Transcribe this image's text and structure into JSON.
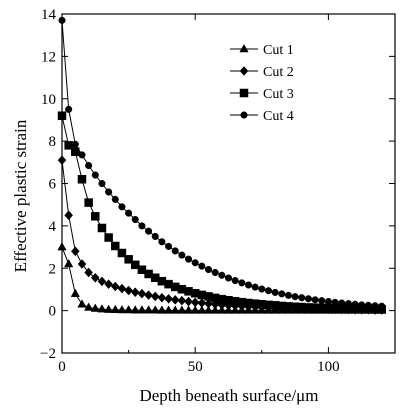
{
  "chart_data": {
    "type": "line",
    "title": "",
    "xlabel": "Depth beneath surface/μm",
    "ylabel": "Effective plastic strain",
    "xlim": [
      0,
      125
    ],
    "ylim": [
      -2,
      14
    ],
    "xticks": [
      0,
      50,
      100
    ],
    "yticks": [
      -2,
      0,
      2,
      4,
      6,
      8,
      10,
      12,
      14
    ],
    "grid": false,
    "legend_position": "top-right",
    "series": [
      {
        "name": "Cut 1",
        "marker": "triangle",
        "x": [
          0,
          2.5,
          5,
          7.5,
          10,
          12.5,
          15,
          17.5,
          20,
          22.5,
          25,
          27.5,
          30,
          32.5,
          35,
          37.5,
          40,
          42.5,
          45,
          47.5,
          50,
          52.5,
          55,
          57.5,
          60,
          62.5,
          65,
          67.5,
          70,
          72.5,
          75,
          77.5,
          80,
          82.5,
          85,
          87.5,
          90,
          92.5,
          95,
          97.5,
          100,
          102.5,
          105,
          107.5,
          110,
          112.5,
          115,
          117.5,
          120
        ],
        "y": [
          3.0,
          2.2,
          0.8,
          0.3,
          0.15,
          0.1,
          0.07,
          0.05,
          0.04,
          0.03,
          0.03,
          0.02,
          0.02,
          0.02,
          0.02,
          0.01,
          0.01,
          0.01,
          0.01,
          0.01,
          0.01,
          0.01,
          0.01,
          0.01,
          0.01,
          0.01,
          0.01,
          0.01,
          0.01,
          0.01,
          0.01,
          0.01,
          0.01,
          0.01,
          0.01,
          0.01,
          0.01,
          0.01,
          0.01,
          0.01,
          0.01,
          0.01,
          0.01,
          0.01,
          0.01,
          0.01,
          0.01,
          0.01,
          0.01
        ]
      },
      {
        "name": "Cut 2",
        "marker": "diamond",
        "x": [
          0,
          2.5,
          5,
          7.5,
          10,
          12.5,
          15,
          17.5,
          20,
          22.5,
          25,
          27.5,
          30,
          32.5,
          35,
          37.5,
          40,
          42.5,
          45,
          47.5,
          50,
          52.5,
          55,
          57.5,
          60,
          62.5,
          65,
          67.5,
          70,
          72.5,
          75,
          77.5,
          80,
          82.5,
          85,
          87.5,
          90,
          92.5,
          95,
          97.5,
          100,
          102.5,
          105,
          107.5,
          110,
          112.5,
          115,
          117.5,
          120
        ],
        "y": [
          7.1,
          4.5,
          2.8,
          2.2,
          1.8,
          1.55,
          1.38,
          1.25,
          1.14,
          1.04,
          0.95,
          0.87,
          0.8,
          0.73,
          0.67,
          0.61,
          0.56,
          0.51,
          0.47,
          0.43,
          0.39,
          0.36,
          0.33,
          0.3,
          0.27,
          0.25,
          0.23,
          0.21,
          0.19,
          0.17,
          0.16,
          0.14,
          0.13,
          0.12,
          0.11,
          0.1,
          0.09,
          0.08,
          0.07,
          0.07,
          0.06,
          0.06,
          0.05,
          0.05,
          0.04,
          0.04,
          0.04,
          0.03,
          0.03
        ]
      },
      {
        "name": "Cut 3",
        "marker": "square",
        "x": [
          0,
          2.5,
          5,
          7.5,
          10,
          12.5,
          15,
          17.5,
          20,
          22.5,
          25,
          27.5,
          30,
          32.5,
          35,
          37.5,
          40,
          42.5,
          45,
          47.5,
          50,
          52.5,
          55,
          57.5,
          60,
          62.5,
          65,
          67.5,
          70,
          72.5,
          75,
          77.5,
          80,
          82.5,
          85,
          87.5,
          90,
          92.5,
          95,
          97.5,
          100,
          102.5,
          105,
          107.5,
          110,
          112.5,
          115,
          117.5,
          120
        ],
        "y": [
          9.2,
          7.8,
          7.5,
          6.2,
          5.1,
          4.45,
          3.9,
          3.45,
          3.05,
          2.72,
          2.42,
          2.16,
          1.93,
          1.73,
          1.55,
          1.39,
          1.25,
          1.12,
          1.01,
          0.91,
          0.82,
          0.74,
          0.67,
          0.6,
          0.54,
          0.49,
          0.44,
          0.4,
          0.36,
          0.33,
          0.3,
          0.27,
          0.25,
          0.22,
          0.2,
          0.18,
          0.17,
          0.15,
          0.14,
          0.13,
          0.12,
          0.11,
          0.1,
          0.09,
          0.08,
          0.07,
          0.07,
          0.06,
          0.06
        ]
      },
      {
        "name": "Cut 4",
        "marker": "circle",
        "x": [
          0,
          2.5,
          5,
          7.5,
          10,
          12.5,
          15,
          17.5,
          20,
          22.5,
          25,
          27.5,
          30,
          32.5,
          35,
          37.5,
          40,
          42.5,
          45,
          47.5,
          50,
          52.5,
          55,
          57.5,
          60,
          62.5,
          65,
          67.5,
          70,
          72.5,
          75,
          77.5,
          80,
          82.5,
          85,
          87.5,
          90,
          92.5,
          95,
          97.5,
          100,
          102.5,
          105,
          107.5,
          110,
          112.5,
          115,
          117.5,
          120
        ],
        "y": [
          13.7,
          9.5,
          7.85,
          7.35,
          6.85,
          6.4,
          6.0,
          5.6,
          5.25,
          4.9,
          4.6,
          4.3,
          4.0,
          3.75,
          3.5,
          3.25,
          3.03,
          2.82,
          2.62,
          2.43,
          2.26,
          2.1,
          1.94,
          1.8,
          1.67,
          1.54,
          1.42,
          1.31,
          1.21,
          1.11,
          1.02,
          0.94,
          0.86,
          0.79,
          0.72,
          0.66,
          0.61,
          0.56,
          0.51,
          0.47,
          0.43,
          0.39,
          0.36,
          0.33,
          0.3,
          0.27,
          0.25,
          0.23,
          0.21
        ]
      }
    ]
  }
}
